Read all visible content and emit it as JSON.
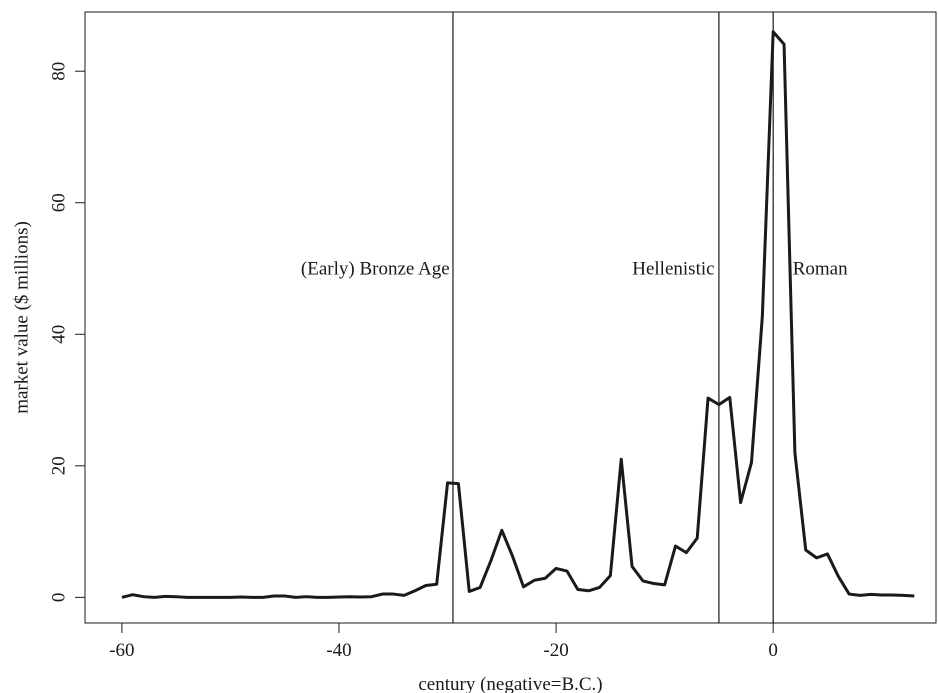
{
  "chart_data": {
    "type": "line",
    "title": "",
    "xlabel": "century (negative=B.C.)",
    "ylabel": "market value ($ millions)",
    "xlim": [
      -63.4,
      15
    ],
    "ylim": [
      -3.9,
      89
    ],
    "x_ticks": [
      -60,
      -40,
      -20,
      0
    ],
    "x_tick_labels": [
      "-60",
      "-40",
      "-20",
      "0"
    ],
    "y_ticks": [
      0,
      20,
      40,
      60,
      80
    ],
    "y_tick_labels": [
      "0",
      "20",
      "40",
      "60",
      "80"
    ],
    "grid": false,
    "legend": "none",
    "series": [
      {
        "color": "#1a1a1a",
        "x": [
          -60,
          -59,
          -58,
          -57,
          -56,
          -55,
          -54,
          -53,
          -52,
          -51,
          -50,
          -49,
          -48,
          -47,
          -46,
          -45,
          -44,
          -43,
          -42,
          -41,
          -40,
          -39,
          -38,
          -37,
          -36,
          -35,
          -34,
          -33,
          -32,
          -31,
          -30,
          -29,
          -28,
          -27,
          -26,
          -25,
          -24,
          -23,
          -22,
          -21,
          -20,
          -19,
          -18,
          -17,
          -16,
          -15,
          -14,
          -13,
          -12,
          -11,
          -10,
          -9,
          -8,
          -7,
          -6,
          -5,
          -4,
          -3,
          -2,
          -1,
          0,
          1,
          2,
          3,
          4,
          5,
          6,
          7,
          8,
          9,
          10,
          11,
          12,
          13
        ],
        "y": [
          0,
          0.4,
          0.1,
          0,
          0.15,
          0.1,
          0,
          0,
          0,
          0,
          0,
          0.05,
          0,
          0,
          0.2,
          0.2,
          0,
          0.1,
          0,
          0,
          0.05,
          0.1,
          0.05,
          0.1,
          0.5,
          0.5,
          0.3,
          1,
          1.8,
          2,
          17.4,
          17.3,
          0.9,
          1.5,
          5.6,
          10.2,
          6.2,
          1.6,
          2.6,
          2.9,
          4.4,
          4,
          1.2,
          1,
          1.5,
          3.3,
          21,
          4.7,
          2.5,
          2.1,
          1.9,
          7.8,
          6.8,
          9,
          30.3,
          29.3,
          30.4,
          14.4,
          20.5,
          42.7,
          86,
          84.1,
          22,
          7.2,
          6,
          6.6,
          3.2,
          0.5,
          0.3,
          0.45,
          0.35,
          0.35,
          0.3,
          0.2
        ]
      }
    ],
    "vlines": [
      -29.5,
      -5,
      0
    ],
    "annotations": [
      {
        "text": "(Early) Bronze Age",
        "x": -29.8,
        "y": 50,
        "anchor": "end"
      },
      {
        "text": "Hellenistic",
        "x": -5.4,
        "y": 50,
        "anchor": "end"
      },
      {
        "text": "Roman",
        "x": 1.8,
        "y": 50,
        "anchor": "start"
      }
    ]
  }
}
